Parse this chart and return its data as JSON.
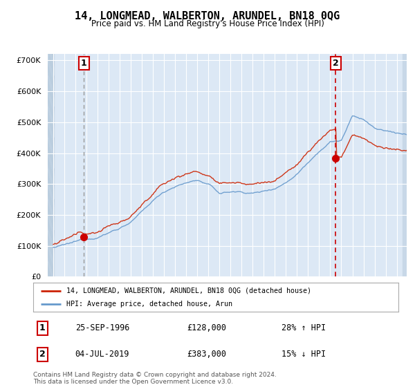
{
  "title": "14, LONGMEAD, WALBERTON, ARUNDEL, BN18 0QG",
  "subtitle": "Price paid vs. HM Land Registry's House Price Index (HPI)",
  "ylim": [
    0,
    720000
  ],
  "yticks": [
    0,
    100000,
    200000,
    300000,
    400000,
    500000,
    600000,
    700000
  ],
  "ytick_labels": [
    "£0",
    "£100K",
    "£200K",
    "£300K",
    "£400K",
    "£500K",
    "£600K",
    "£700K"
  ],
  "sale1_date": 1996.75,
  "sale1_price": 128000,
  "sale2_date": 2019.5,
  "sale2_price": 383000,
  "xmin": 1993.5,
  "xmax": 2025.9,
  "legend_label1": "14, LONGMEAD, WALBERTON, ARUNDEL, BN18 0QG (detached house)",
  "legend_label2": "HPI: Average price, detached house, Arun",
  "note1_label": "1",
  "note1_date": "25-SEP-1996",
  "note1_price": "£128,000",
  "note1_hpi": "28% ↑ HPI",
  "note2_label": "2",
  "note2_date": "04-JUL-2019",
  "note2_price": "£383,000",
  "note2_hpi": "15% ↓ HPI",
  "footer": "Contains HM Land Registry data © Crown copyright and database right 2024.\nThis data is licensed under the Open Government Licence v3.0.",
  "red_color": "#cc0000",
  "hpi_line_color": "#6699cc",
  "price_line_color": "#cc2200",
  "plot_bg": "#dce8f5",
  "hatch_color": "#b0c4d8",
  "grid_color": "#ffffff",
  "sale1_vline_color": "#999999",
  "sale2_vline_color": "#cc0000"
}
